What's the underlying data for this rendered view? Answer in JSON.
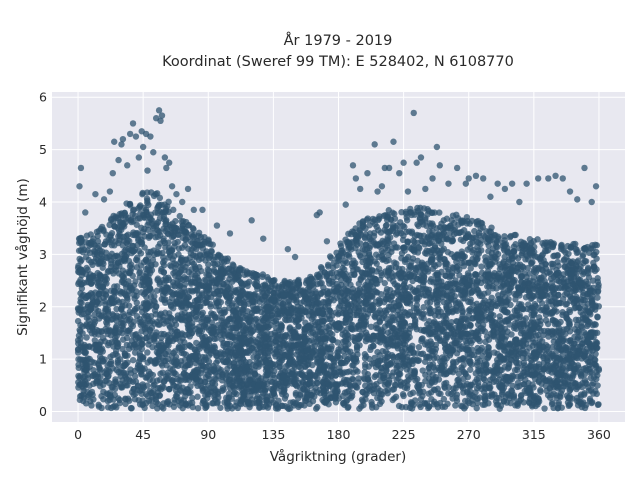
{
  "chart_data": {
    "type": "scatter",
    "title": "År 1979 - 2019",
    "subtitle": "Koordinat (Sweref 99 TM): E 528402, N 6108770",
    "xlabel": "Vågriktning (grader)",
    "ylabel": "Signifikant våghöjd (m)",
    "xlim": [
      -18,
      378
    ],
    "ylim": [
      -0.2,
      6.1
    ],
    "xticks": [
      0,
      45,
      90,
      135,
      180,
      225,
      270,
      315,
      360
    ],
    "yticks": [
      0,
      1,
      2,
      3,
      4,
      5,
      6
    ],
    "grid": true,
    "background": "#e8e8f0",
    "grid_color": "#ffffff",
    "point_color": "#2f5470",
    "envelope": {
      "x": [
        0,
        10,
        20,
        30,
        40,
        50,
        60,
        70,
        80,
        90,
        100,
        110,
        120,
        130,
        140,
        150,
        160,
        170,
        180,
        190,
        200,
        210,
        220,
        230,
        240,
        250,
        260,
        270,
        280,
        290,
        300,
        310,
        320,
        330,
        340,
        350,
        360
      ],
      "y_dense_max": [
        3.3,
        3.4,
        3.6,
        3.9,
        4.1,
        4.3,
        4.1,
        3.8,
        3.5,
        3.3,
        3.0,
        2.8,
        2.7,
        2.6,
        2.5,
        2.5,
        2.6,
        2.8,
        3.2,
        3.5,
        3.7,
        3.8,
        3.9,
        3.9,
        3.9,
        3.8,
        3.8,
        3.7,
        3.6,
        3.5,
        3.4,
        3.3,
        3.3,
        3.2,
        3.2,
        3.2,
        3.2
      ]
    },
    "outliers": [
      {
        "x": 1,
        "y": 4.3
      },
      {
        "x": 2,
        "y": 4.65
      },
      {
        "x": 5,
        "y": 3.8
      },
      {
        "x": 12,
        "y": 4.15
      },
      {
        "x": 18,
        "y": 4.05
      },
      {
        "x": 22,
        "y": 4.2
      },
      {
        "x": 24,
        "y": 4.55
      },
      {
        "x": 25,
        "y": 5.15
      },
      {
        "x": 28,
        "y": 4.8
      },
      {
        "x": 30,
        "y": 5.1
      },
      {
        "x": 31,
        "y": 5.2
      },
      {
        "x": 34,
        "y": 4.7
      },
      {
        "x": 36,
        "y": 5.3
      },
      {
        "x": 38,
        "y": 5.5
      },
      {
        "x": 40,
        "y": 5.25
      },
      {
        "x": 42,
        "y": 4.85
      },
      {
        "x": 44,
        "y": 5.35
      },
      {
        "x": 45,
        "y": 5.05
      },
      {
        "x": 47,
        "y": 5.3
      },
      {
        "x": 48,
        "y": 4.6
      },
      {
        "x": 50,
        "y": 5.25
      },
      {
        "x": 52,
        "y": 4.95
      },
      {
        "x": 54,
        "y": 5.6
      },
      {
        "x": 56,
        "y": 5.75
      },
      {
        "x": 57,
        "y": 5.55
      },
      {
        "x": 58,
        "y": 5.65
      },
      {
        "x": 60,
        "y": 4.85
      },
      {
        "x": 61,
        "y": 4.65
      },
      {
        "x": 63,
        "y": 4.75
      },
      {
        "x": 65,
        "y": 4.3
      },
      {
        "x": 68,
        "y": 4.15
      },
      {
        "x": 72,
        "y": 4.0
      },
      {
        "x": 76,
        "y": 4.25
      },
      {
        "x": 80,
        "y": 3.85
      },
      {
        "x": 86,
        "y": 3.85
      },
      {
        "x": 96,
        "y": 3.55
      },
      {
        "x": 105,
        "y": 3.4
      },
      {
        "x": 120,
        "y": 3.65
      },
      {
        "x": 128,
        "y": 3.3
      },
      {
        "x": 145,
        "y": 3.1
      },
      {
        "x": 150,
        "y": 2.95
      },
      {
        "x": 165,
        "y": 3.75
      },
      {
        "x": 167,
        "y": 3.8
      },
      {
        "x": 172,
        "y": 3.25
      },
      {
        "x": 185,
        "y": 3.95
      },
      {
        "x": 190,
        "y": 4.7
      },
      {
        "x": 192,
        "y": 4.45
      },
      {
        "x": 195,
        "y": 4.25
      },
      {
        "x": 200,
        "y": 4.55
      },
      {
        "x": 205,
        "y": 5.1
      },
      {
        "x": 207,
        "y": 4.2
      },
      {
        "x": 210,
        "y": 4.3
      },
      {
        "x": 212,
        "y": 4.65
      },
      {
        "x": 215,
        "y": 4.65
      },
      {
        "x": 218,
        "y": 5.15
      },
      {
        "x": 222,
        "y": 4.55
      },
      {
        "x": 225,
        "y": 4.75
      },
      {
        "x": 228,
        "y": 4.2
      },
      {
        "x": 232,
        "y": 5.7
      },
      {
        "x": 234,
        "y": 4.75
      },
      {
        "x": 237,
        "y": 4.85
      },
      {
        "x": 240,
        "y": 4.25
      },
      {
        "x": 245,
        "y": 4.45
      },
      {
        "x": 248,
        "y": 5.05
      },
      {
        "x": 250,
        "y": 4.7
      },
      {
        "x": 256,
        "y": 4.35
      },
      {
        "x": 262,
        "y": 4.65
      },
      {
        "x": 268,
        "y": 4.35
      },
      {
        "x": 270,
        "y": 4.45
      },
      {
        "x": 275,
        "y": 4.5
      },
      {
        "x": 280,
        "y": 4.45
      },
      {
        "x": 285,
        "y": 4.1
      },
      {
        "x": 290,
        "y": 4.35
      },
      {
        "x": 295,
        "y": 4.25
      },
      {
        "x": 300,
        "y": 4.35
      },
      {
        "x": 305,
        "y": 4.0
      },
      {
        "x": 310,
        "y": 4.35
      },
      {
        "x": 318,
        "y": 4.45
      },
      {
        "x": 325,
        "y": 4.45
      },
      {
        "x": 330,
        "y": 4.5
      },
      {
        "x": 335,
        "y": 4.45
      },
      {
        "x": 340,
        "y": 4.2
      },
      {
        "x": 345,
        "y": 4.05
      },
      {
        "x": 350,
        "y": 4.65
      },
      {
        "x": 355,
        "y": 4.0
      },
      {
        "x": 358,
        "y": 4.3
      }
    ]
  }
}
